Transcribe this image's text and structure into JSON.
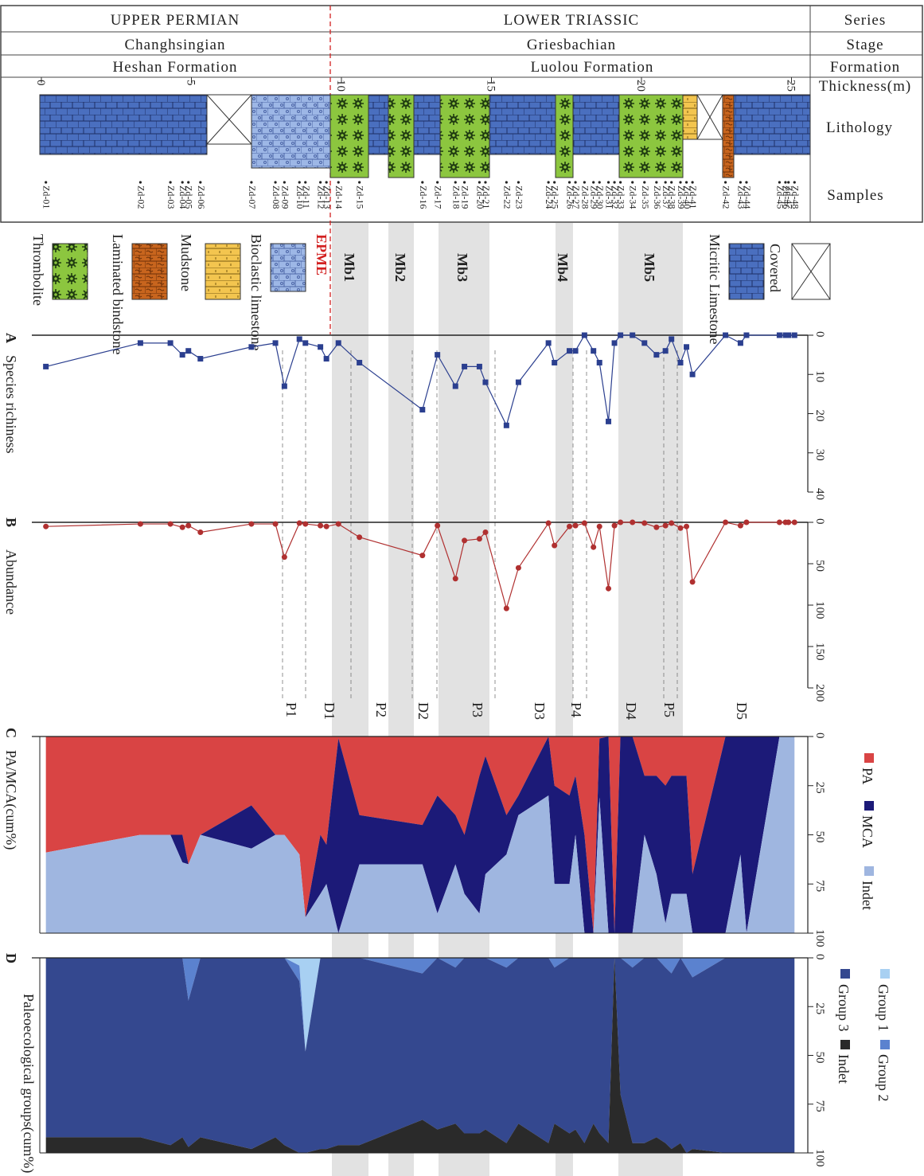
{
  "header": {
    "series": {
      "upper_permian": "UPPER        PERMIAN",
      "lower_triassic": "LOWER        TRIASSIC",
      "label": "Series"
    },
    "stage": {
      "changhsingian": "Changhsingian",
      "griesbachian": "Griesbachian",
      "label": "Stage"
    },
    "formation": {
      "heshan": "Heshan  Formation",
      "luolou": "Luolou  Formation",
      "label": "Formation"
    },
    "thickness": {
      "label": "Thickness(m)",
      "ticks": [
        "0",
        "5",
        "10",
        "15",
        "20",
        "25"
      ]
    },
    "lithology_label": "Lithology",
    "samples_label": "Samples",
    "samples": [
      "Zd-01",
      "Zd-02",
      "Zd-03",
      "Zd-04",
      "Zd-05",
      "Zd-06",
      "Zd-07",
      "Zd-08",
      "Zd-09",
      "Zd-10",
      "Zd-11",
      "Zd-12",
      "Zd-13",
      "Zd-14",
      "Zd-15",
      "Zd-16",
      "Zd-17",
      "Zd-18",
      "Zd-19",
      "Zd-20",
      "Zd-21",
      "Zd-22",
      "Zd-23",
      "Zd-24",
      "Zd-25",
      "Zd-26",
      "Zd-27",
      "Zd-28",
      "Zd-29",
      "Zd-30",
      "Zd-31",
      "Zd-32",
      "Zd-33",
      "Zd-34",
      "Zd-35",
      "Zd-36",
      "Zd-37",
      "Zd-38",
      "Zd-39",
      "Zd-40",
      "Zd-41",
      "Zd-42",
      "Zd-43",
      "Zd-44",
      "Zd-45",
      "Zd-46",
      "Zd-47",
      "Zd-48"
    ]
  },
  "legend_lith": {
    "thrombolite": "Thrombolite",
    "laminated": "Laminated bindstone",
    "mudstone": "Mudstone",
    "bioclastic": "Bioclastic limestone",
    "epme": "EPME",
    "micritic": "Micritic Limestone",
    "covered": "Covered"
  },
  "members": [
    "Mb1",
    "Mb2",
    "Mb3",
    "Mb4",
    "Mb5"
  ],
  "pd_labels": [
    "P1",
    "D1",
    "P2",
    "D2",
    "P3",
    "D3",
    "P4",
    "D4",
    "P5",
    "D5"
  ],
  "colors": {
    "micritic": "#4a6fbf",
    "bioclastic": "#9db7e6",
    "thrombolite": "#8cc63f",
    "laminated": "#c8651e",
    "mudstone": "#f3c54f",
    "richness": "#2b3f8f",
    "abundance": "#b03030",
    "pa": "#d94444",
    "mca": "#1c1a78",
    "indet": "#9fb6e0",
    "group1": "#a8d0f2",
    "group2": "#5b82cf",
    "group3": "#34488f",
    "group_indet": "#2a2a2a",
    "epme_line": "#d22020",
    "member_band": "#d8d8d8"
  },
  "chart_data": [
    {
      "type": "line",
      "panel": "A",
      "title": "Species richiness",
      "xlabel": "Thickness(m)",
      "ylabel": "Species richiness",
      "ylim": [
        0,
        40
      ],
      "yticks": [
        "0",
        "10",
        "20",
        "30",
        "40"
      ],
      "x": [
        0.15,
        3.3,
        4.3,
        4.7,
        4.9,
        5.3,
        7.0,
        7.8,
        8.1,
        8.6,
        8.8,
        9.3,
        9.5,
        9.9,
        10.6,
        12.7,
        13.2,
        13.8,
        14.1,
        14.6,
        14.8,
        15.5,
        15.9,
        16.9,
        17.1,
        17.6,
        17.8,
        18.1,
        18.4,
        18.6,
        18.9,
        19.1,
        19.3,
        19.7,
        20.1,
        20.5,
        20.8,
        21.0,
        21.3,
        21.5,
        21.7,
        22.8,
        23.3,
        23.5,
        24.6,
        24.8,
        24.9,
        25.1
      ],
      "values": [
        8,
        2,
        2,
        5,
        4,
        6,
        3,
        2,
        13,
        1,
        2,
        3,
        6,
        2,
        7,
        19,
        5,
        13,
        8,
        8,
        12,
        23,
        12,
        2,
        7,
        4,
        4,
        0,
        4,
        7,
        22,
        2,
        0,
        0,
        2,
        5,
        4,
        1,
        7,
        3,
        10,
        0,
        2,
        0,
        0,
        0,
        0,
        0
      ]
    },
    {
      "type": "line",
      "panel": "B",
      "title": "Abundance",
      "xlabel": "Thickness(m)",
      "ylabel": "Abundance",
      "ylim": [
        0,
        200
      ],
      "yticks": [
        "0",
        "50",
        "100",
        "150",
        "200"
      ],
      "x": [
        0.15,
        3.3,
        4.3,
        4.7,
        4.9,
        5.3,
        7.0,
        7.8,
        8.1,
        8.6,
        8.8,
        9.3,
        9.5,
        9.9,
        10.6,
        12.7,
        13.2,
        13.8,
        14.1,
        14.6,
        14.8,
        15.5,
        15.9,
        16.9,
        17.1,
        17.6,
        17.8,
        18.1,
        18.4,
        18.6,
        18.9,
        19.1,
        19.3,
        19.7,
        20.1,
        20.5,
        20.8,
        21.0,
        21.3,
        21.5,
        21.7,
        22.8,
        23.3,
        23.5,
        24.6,
        24.8,
        24.9,
        25.1
      ],
      "values": [
        5,
        2,
        2,
        6,
        4,
        12,
        2,
        2,
        42,
        1,
        2,
        4,
        5,
        2,
        18,
        40,
        4,
        68,
        22,
        20,
        12,
        104,
        55,
        1,
        28,
        5,
        4,
        1,
        30,
        5,
        80,
        4,
        0,
        0,
        1,
        6,
        4,
        1,
        7,
        5,
        72,
        0,
        4,
        0,
        0,
        0,
        0,
        0
      ]
    },
    {
      "type": "area",
      "panel": "C",
      "title": "PA/MCA(cum%)",
      "ylabel": "PA/MCA(cum%)",
      "ylim": [
        0,
        100
      ],
      "yticks": [
        "0",
        "25",
        "50",
        "75",
        "100"
      ],
      "series_labels": [
        "PA",
        "MCA",
        "Indet"
      ],
      "x": [
        0.15,
        3.3,
        4.3,
        4.7,
        4.9,
        5.3,
        7.0,
        7.8,
        8.1,
        8.6,
        8.8,
        9.3,
        9.5,
        9.9,
        10.6,
        12.7,
        13.2,
        13.8,
        14.1,
        14.6,
        14.8,
        15.5,
        15.9,
        16.9,
        17.1,
        17.6,
        17.8,
        18.1,
        18.4,
        18.6,
        18.9,
        19.1,
        19.3,
        19.7,
        20.1,
        20.5,
        20.8,
        21.0,
        21.3,
        21.5,
        21.7,
        22.8,
        23.3,
        23.5,
        24.6,
        24.8,
        24.9,
        25.1
      ],
      "series": [
        {
          "name": "PA",
          "values": [
            59,
            50,
            50,
            50,
            65,
            50,
            35,
            50,
            50,
            60,
            92,
            50,
            55,
            1,
            40,
            45,
            30,
            40,
            50,
            20,
            10,
            40,
            30,
            0,
            25,
            30,
            20,
            50,
            100,
            1,
            0,
            100,
            0,
            0,
            20,
            20,
            25,
            20,
            20,
            20,
            70,
            0,
            0,
            0,
            0,
            0,
            0,
            0
          ]
        },
        {
          "name": "MCA",
          "values": [
            0,
            0,
            0,
            14,
            0,
            0,
            22,
            0,
            0,
            0,
            0,
            30,
            20,
            99,
            25,
            20,
            60,
            25,
            30,
            70,
            60,
            20,
            10,
            30,
            50,
            45,
            30,
            50,
            0,
            30,
            100,
            0,
            100,
            100,
            30,
            50,
            70,
            60,
            60,
            60,
            30,
            100,
            60,
            100,
            0,
            0,
            0,
            0
          ]
        },
        {
          "name": "Indet",
          "values": [
            41,
            50,
            50,
            36,
            35,
            50,
            43,
            50,
            50,
            40,
            8,
            20,
            25,
            0,
            35,
            35,
            10,
            35,
            20,
            10,
            30,
            40,
            60,
            70,
            25,
            25,
            50,
            0,
            0,
            69,
            0,
            0,
            0,
            0,
            50,
            30,
            5,
            20,
            20,
            20,
            0,
            0,
            40,
            0,
            100,
            100,
            100,
            100
          ]
        }
      ]
    },
    {
      "type": "area",
      "panel": "D",
      "title": "Paleoecological groups(cum%)",
      "ylabel": "Paleoecological groups(cum%)",
      "ylim": [
        0,
        100
      ],
      "yticks": [
        "0",
        "25",
        "50",
        "75",
        "100"
      ],
      "series_labels": [
        "Group 1",
        "Group 2",
        "Group 3",
        "Indet"
      ],
      "x": [
        0.15,
        3.3,
        4.3,
        4.7,
        4.9,
        5.3,
        7.0,
        7.8,
        8.1,
        8.6,
        8.8,
        9.3,
        9.5,
        9.9,
        10.6,
        12.7,
        13.2,
        13.8,
        14.1,
        14.6,
        14.8,
        15.5,
        15.9,
        16.9,
        17.1,
        17.6,
        17.8,
        18.1,
        18.4,
        18.6,
        18.9,
        19.1,
        19.3,
        19.7,
        20.1,
        20.5,
        20.8,
        21.0,
        21.3,
        21.5,
        21.7,
        22.8,
        23.3,
        23.5,
        24.6,
        24.8,
        24.9,
        25.1
      ],
      "series": [
        {
          "name": "Group 1",
          "values": [
            0,
            0,
            0,
            0,
            0,
            0,
            0,
            0,
            0,
            4,
            48,
            0,
            0,
            0,
            0,
            0,
            0,
            0,
            0,
            0,
            0,
            0,
            0,
            0,
            0,
            0,
            0,
            0,
            0,
            0,
            0,
            0,
            0,
            0,
            0,
            0,
            0,
            0,
            0,
            0,
            0,
            0,
            0,
            0,
            0,
            0,
            0,
            0
          ]
        },
        {
          "name": "Group 2",
          "values": [
            0,
            0,
            0,
            0,
            22,
            0,
            0,
            0,
            0,
            8,
            0,
            0,
            0,
            0,
            0,
            8,
            0,
            5,
            0,
            0,
            0,
            5,
            0,
            0,
            5,
            0,
            0,
            0,
            0,
            0,
            0,
            0,
            0,
            5,
            0,
            0,
            5,
            8,
            0,
            5,
            10,
            0,
            0,
            0,
            0,
            0,
            0,
            0
          ]
        },
        {
          "name": "Group 3",
          "values": [
            92,
            92,
            96,
            92,
            75,
            92,
            98,
            92,
            96,
            88,
            52,
            98,
            98,
            96,
            96,
            75,
            88,
            80,
            90,
            90,
            88,
            90,
            85,
            95,
            80,
            90,
            88,
            95,
            85,
            90,
            95,
            0,
            70,
            90,
            95,
            92,
            90,
            90,
            95,
            95,
            88,
            100,
            100,
            100,
            100,
            100,
            100,
            100
          ]
        },
        {
          "name": "Indet",
          "values": [
            8,
            8,
            4,
            8,
            3,
            8,
            2,
            8,
            4,
            0,
            0,
            2,
            2,
            4,
            4,
            17,
            12,
            15,
            10,
            10,
            12,
            5,
            15,
            5,
            15,
            10,
            12,
            5,
            15,
            10,
            5,
            100,
            30,
            5,
            5,
            8,
            5,
            2,
            5,
            0,
            2,
            0,
            0,
            0,
            0,
            0,
            0,
            0
          ]
        }
      ]
    }
  ]
}
